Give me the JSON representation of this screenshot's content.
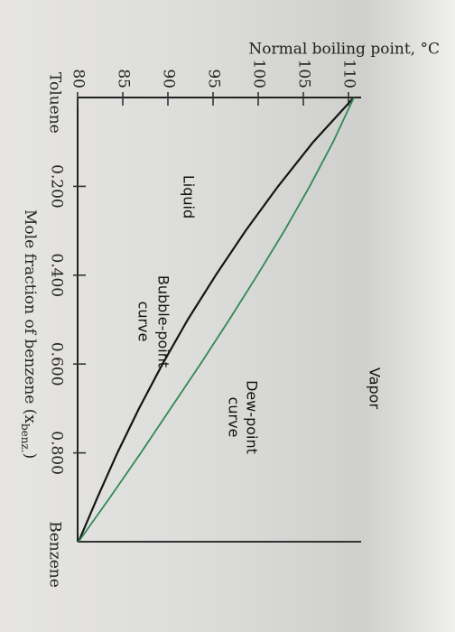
{
  "chart_data": {
    "type": "line",
    "ylabel": "Normal boiling point, °C",
    "xlabel_main": "Mole fraction of benzene (x",
    "xlabel_sub": "benz.",
    "xlabel_end": ")",
    "xlim": [
      0,
      1
    ],
    "ylim": [
      80,
      110.6
    ],
    "x_ticks": [
      0.2,
      0.4,
      0.6,
      0.8
    ],
    "x_tick_labels": [
      "0.200",
      "0.400",
      "0.600",
      "0.800"
    ],
    "y_ticks": [
      80,
      85,
      90,
      95,
      100,
      105,
      110
    ],
    "y_tick_labels": [
      "80",
      "85",
      "90",
      "95",
      "100",
      "105",
      "110"
    ],
    "left_end_label": "Toluene",
    "right_end_label": "Benzene",
    "series": [
      {
        "name": "Bubble-point curve",
        "color": "#141414",
        "x": [
          0,
          0.1,
          0.2,
          0.3,
          0.4,
          0.5,
          0.6,
          0.7,
          0.8,
          0.9,
          1.0
        ],
        "y": [
          110.6,
          106.1,
          102.2,
          98.6,
          95.3,
          92.2,
          89.4,
          86.8,
          84.4,
          82.2,
          80.1
        ]
      },
      {
        "name": "Dew-point curve",
        "color": "#2f8a52",
        "x": [
          0,
          0.1,
          0.2,
          0.3,
          0.4,
          0.5,
          0.6,
          0.7,
          0.8,
          0.9,
          1.0
        ],
        "y": [
          110.6,
          108.3,
          105.7,
          102.9,
          99.9,
          96.8,
          93.6,
          90.3,
          87.0,
          83.6,
          80.1
        ]
      }
    ],
    "annotations": {
      "vapor": "Vapor",
      "liquid": "Liquid",
      "dew_line1": "Dew-point",
      "dew_line2": "curve",
      "bubble_line1": "Bubble-point",
      "bubble_line2": "curve"
    }
  }
}
